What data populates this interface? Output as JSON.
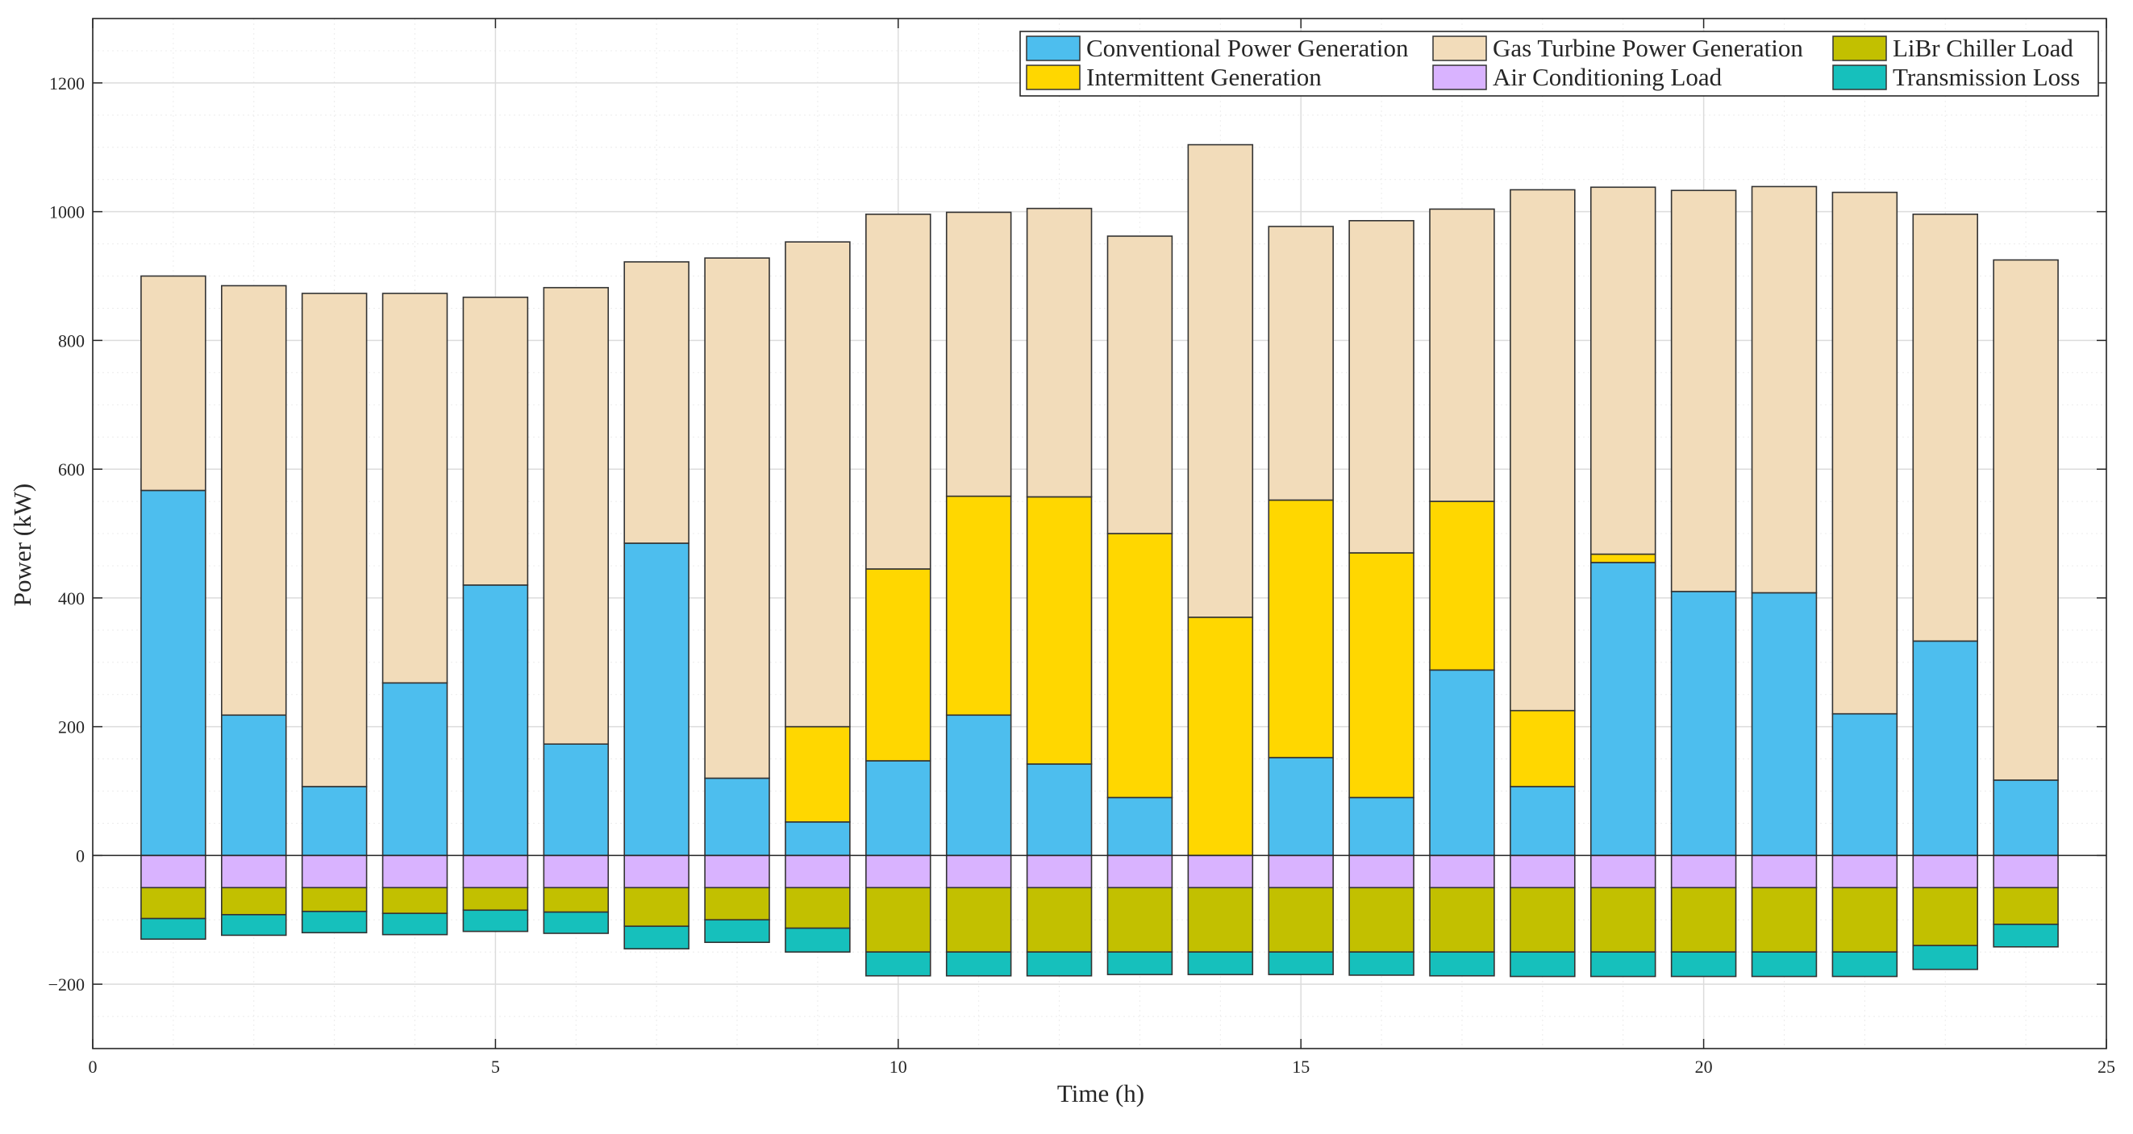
{
  "chart_data": {
    "type": "bar",
    "stacked": true,
    "title": "",
    "xlabel": "Time (h)",
    "ylabel": "Power (kW)",
    "xlim": [
      0,
      25
    ],
    "ylim": [
      -300,
      1300
    ],
    "xticks": [
      0,
      5,
      10,
      15,
      20,
      25
    ],
    "yticks": [
      -200,
      0,
      200,
      400,
      600,
      800,
      1000,
      1200
    ],
    "grid": true,
    "legend_position": "top-right",
    "x": [
      1,
      2,
      3,
      4,
      5,
      6,
      7,
      8,
      9,
      10,
      11,
      12,
      13,
      14,
      15,
      16,
      17,
      18,
      19,
      20,
      21,
      22,
      23,
      24
    ],
    "series": [
      {
        "name": "Conventional Power Generation",
        "color": "#4DBEEE",
        "values": [
          567,
          218,
          107,
          268,
          420,
          173,
          485,
          120,
          52,
          147,
          218,
          142,
          90,
          0,
          152,
          90,
          288,
          107,
          455,
          410,
          408,
          220,
          333,
          117
        ]
      },
      {
        "name": "Intermittent Generation",
        "color": "#FFD700",
        "values": [
          0,
          0,
          0,
          0,
          0,
          0,
          0,
          0,
          148,
          298,
          340,
          415,
          410,
          370,
          400,
          380,
          262,
          118,
          13,
          0,
          0,
          0,
          0,
          0
        ]
      },
      {
        "name": "Gas Turbine Power Generation",
        "color": "#F2DCBA",
        "values": [
          333,
          667,
          766,
          605,
          447,
          709,
          437,
          808,
          753,
          551,
          441,
          448,
          462,
          734,
          425,
          516,
          454,
          809,
          570,
          623,
          631,
          810,
          663,
          808
        ]
      },
      {
        "name": "Air Conditioning Load",
        "color": "#D9B3FF",
        "values": [
          -50,
          -50,
          -50,
          -50,
          -50,
          -50,
          -50,
          -50,
          -50,
          -50,
          -50,
          -50,
          -50,
          -50,
          -50,
          -50,
          -50,
          -50,
          -50,
          -50,
          -50,
          -50,
          -50,
          -50
        ]
      },
      {
        "name": "LiBr Chiller Load",
        "color": "#C2C000",
        "values": [
          -48,
          -42,
          -37,
          -40,
          -35,
          -38,
          -60,
          -50,
          -63,
          -100,
          -100,
          -100,
          -100,
          -100,
          -100,
          -100,
          -100,
          -100,
          -100,
          -100,
          -100,
          -100,
          -90,
          -57
        ]
      },
      {
        "name": "Transmission Loss",
        "color": "#16C0BC",
        "values": [
          -32,
          -32,
          -33,
          -33,
          -33,
          -33,
          -35,
          -35,
          -37,
          -37,
          -37,
          -37,
          -35,
          -35,
          -35,
          -36,
          -37,
          -38,
          -38,
          -38,
          -38,
          -38,
          -37,
          -35
        ]
      }
    ],
    "legend_order": [
      "Conventional Power Generation",
      "Gas Turbine Power Generation",
      "LiBr Chiller Load",
      "Intermittent Generation",
      "Air Conditioning Load",
      "Transmission Loss"
    ]
  }
}
